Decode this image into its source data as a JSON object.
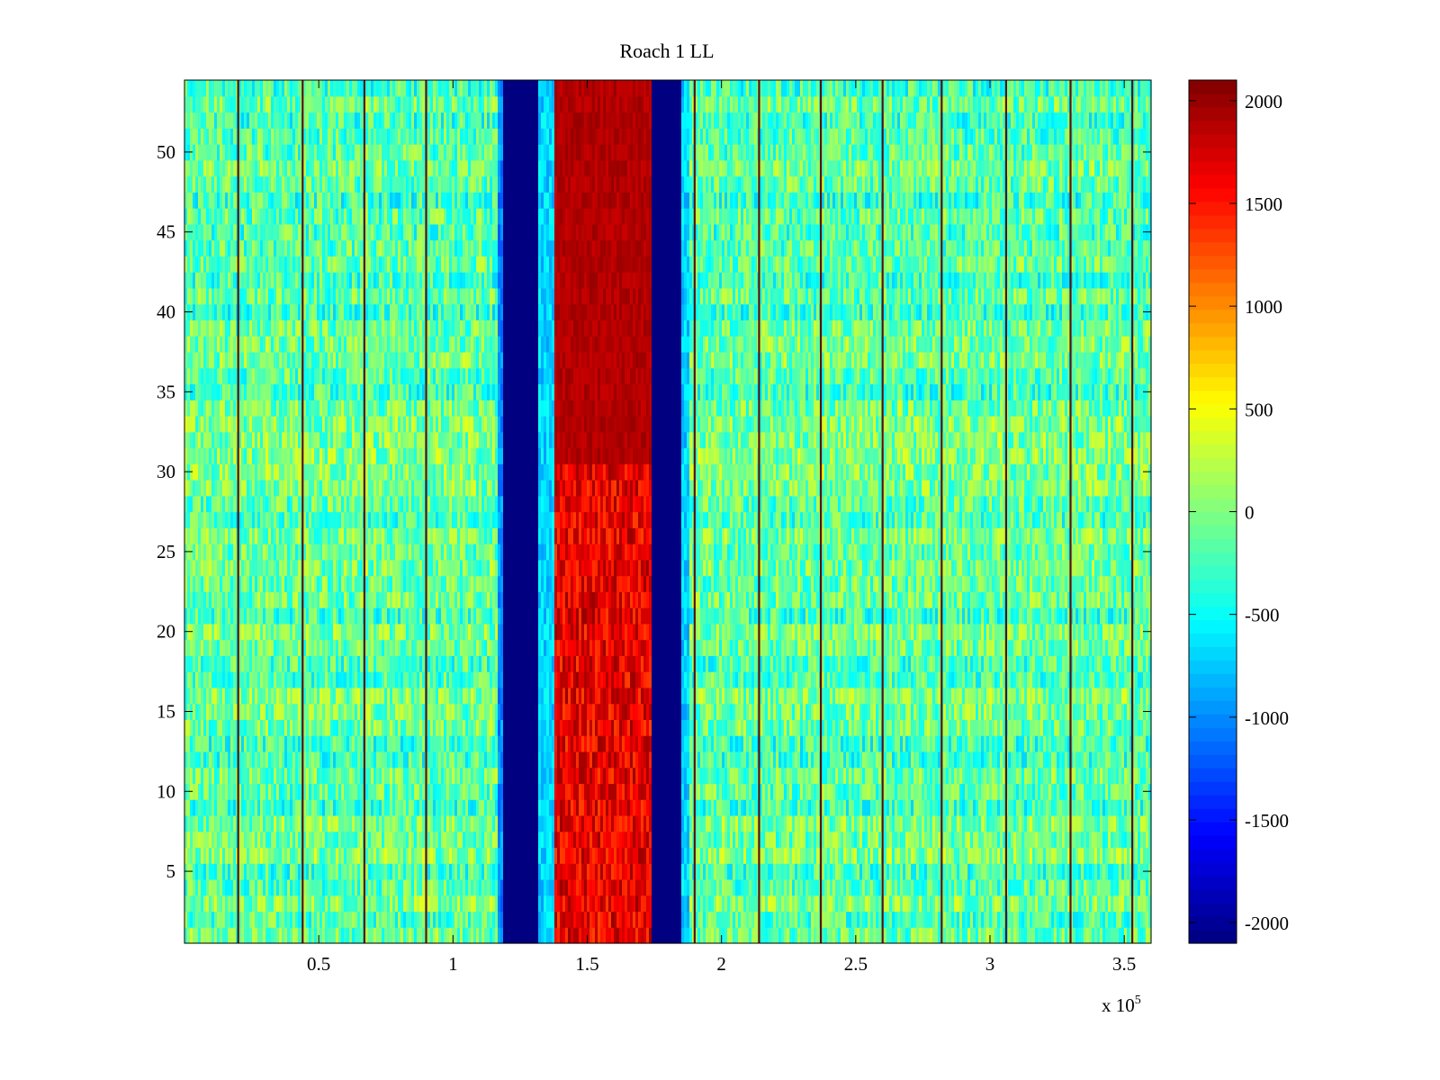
{
  "chart_data": {
    "type": "heatmap",
    "title": "Roach 1 LL",
    "xlabel": "",
    "ylabel": "",
    "x_exponent_label": "x 10",
    "x_exponent_power": "5",
    "xlim": [
      0,
      3.6
    ],
    "ylim": [
      0.5,
      54.5
    ],
    "x_ticks": [
      0.5,
      1,
      1.5,
      2,
      2.5,
      3,
      3.5
    ],
    "x_tick_labels": [
      "0.5",
      "1",
      "1.5",
      "2",
      "2.5",
      "3",
      "3.5"
    ],
    "y_ticks": [
      5,
      10,
      15,
      20,
      25,
      30,
      35,
      40,
      45,
      50
    ],
    "y_tick_labels": [
      "5",
      "10",
      "15",
      "20",
      "25",
      "30",
      "35",
      "40",
      "45",
      "50"
    ],
    "colormap": "jet",
    "clim": [
      -2100,
      2100
    ],
    "colorbar_ticks": [
      2000,
      1500,
      1000,
      500,
      0,
      -500,
      -1000,
      -1500,
      -2000
    ],
    "colorbar_tick_labels": [
      "2000",
      "1500",
      "1000",
      "500",
      "0",
      "-500",
      "-1000",
      "-1500",
      "-2000"
    ],
    "rows": 54,
    "background_level": -150,
    "bands": [
      {
        "x_start": 1.17,
        "x_end": 1.19,
        "value": -1000
      },
      {
        "x_start": 1.19,
        "x_end": 1.32,
        "value": -2100
      },
      {
        "x_start": 1.32,
        "x_end": 1.38,
        "value": -700
      },
      {
        "x_start": 1.38,
        "x_end": 1.74,
        "value": 2000
      },
      {
        "x_start": 1.74,
        "x_end": 1.85,
        "value": -2100
      },
      {
        "x_start": 1.85,
        "x_end": 1.88,
        "value": -700
      }
    ],
    "vertical_lines_x": [
      0.2,
      0.44,
      0.67,
      0.9,
      1.9,
      2.14,
      2.37,
      2.6,
      2.82,
      3.06,
      3.3,
      3.53
    ]
  }
}
